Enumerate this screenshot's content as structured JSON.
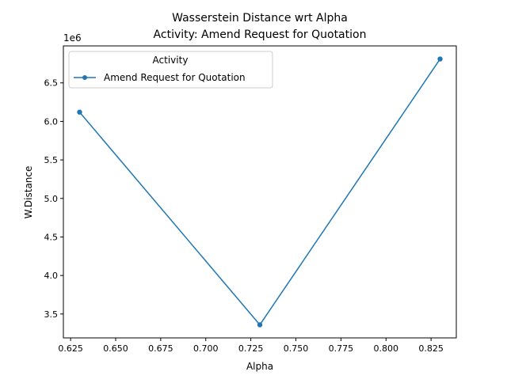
{
  "chart_data": {
    "type": "line",
    "title": "Wasserstein Distance wrt Alpha",
    "subtitle": "Activity: Amend Request for Quotation",
    "xlabel": "Alpha",
    "ylabel": "W.Distance",
    "y_offset_label": "1e6",
    "xlim": [
      0.621,
      0.839
    ],
    "ylim": [
      3.19,
      6.98
    ],
    "xticks": [
      "0.625",
      "0.650",
      "0.675",
      "0.700",
      "0.725",
      "0.750",
      "0.775",
      "0.800",
      "0.825"
    ],
    "xtick_values": [
      0.625,
      0.65,
      0.675,
      0.7,
      0.725,
      0.75,
      0.775,
      0.8,
      0.825
    ],
    "yticks": [
      "3.5",
      "4.0",
      "4.5",
      "5.0",
      "5.5",
      "6.0",
      "6.5"
    ],
    "ytick_values": [
      3.5,
      4.0,
      4.5,
      5.0,
      5.5,
      6.0,
      6.5
    ],
    "legend": {
      "title": "Activity",
      "position": "upper-left"
    },
    "series": [
      {
        "name": "Amend Request for Quotation",
        "color": "#1f77b4",
        "marker": "circle",
        "x": [
          0.63,
          0.73,
          0.83
        ],
        "y": [
          6.12,
          3.36,
          6.81
        ]
      }
    ],
    "grid": false
  }
}
